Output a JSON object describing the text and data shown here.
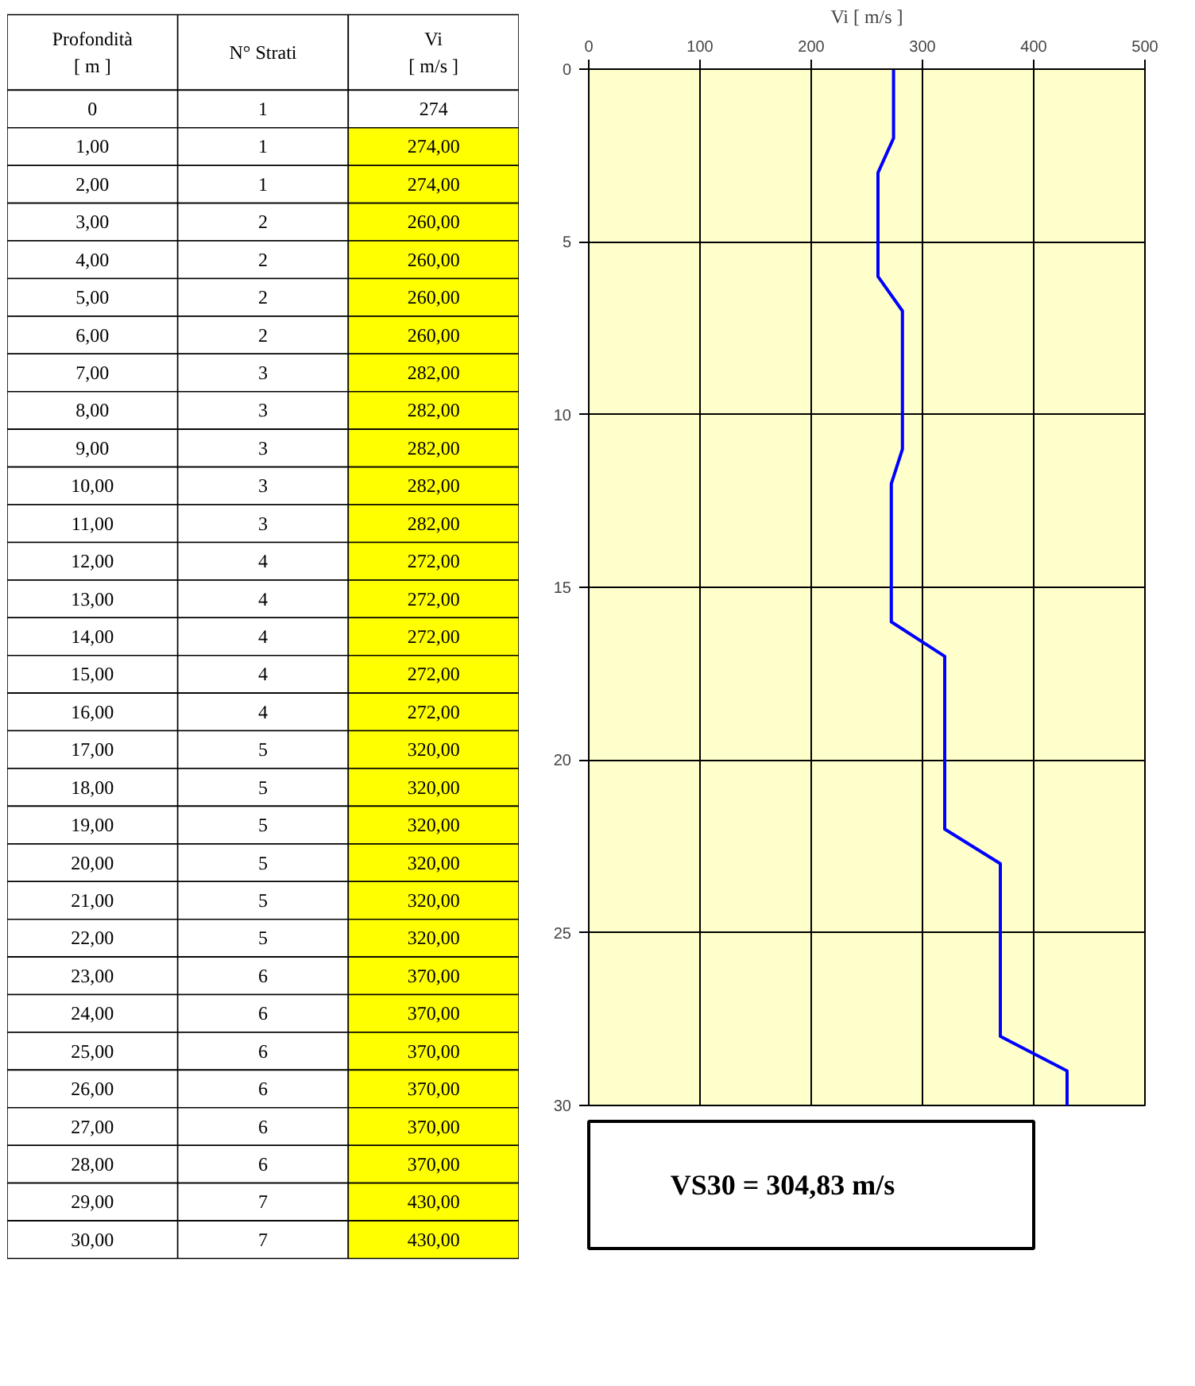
{
  "chart_data": {
    "type": "line",
    "xlabel": "Vi [ m/s ]",
    "xlim": [
      0,
      500
    ],
    "xticks": [
      0,
      100,
      200,
      300,
      400,
      500
    ],
    "ylim": [
      30,
      0
    ],
    "yticks": [
      0,
      5,
      10,
      15,
      20,
      25,
      30
    ],
    "grid": true,
    "series": [
      {
        "color": "#0000ff",
        "x": [
          274,
          274,
          274,
          260,
          260,
          260,
          260,
          282,
          282,
          282,
          282,
          282,
          272,
          272,
          272,
          272,
          272,
          320,
          320,
          320,
          320,
          320,
          320,
          370,
          370,
          370,
          370,
          370,
          370,
          430,
          430
        ],
        "values": [
          0,
          1,
          2,
          3,
          4,
          5,
          6,
          7,
          8,
          9,
          10,
          11,
          12,
          13,
          14,
          15,
          16,
          17,
          18,
          19,
          20,
          21,
          22,
          23,
          24,
          25,
          26,
          27,
          28,
          29,
          30
        ]
      }
    ],
    "annotations": [
      "Profondità\n[ m ]",
      "N° Strati",
      "Vi\n[ m/s ]",
      "0",
      "1",
      "274",
      "1,00",
      "1",
      "274,00",
      "2,00",
      "1",
      "274,00",
      "3,00",
      "2",
      "260,00",
      "4,00",
      "2",
      "260,00",
      "5,00",
      "2",
      "260,00",
      "6,00",
      "2",
      "260,00",
      "7,00",
      "3",
      "282,00",
      "8,00",
      "3",
      "282,00",
      "9,00",
      "3",
      "282,00",
      "10,00",
      "3",
      "282,00",
      "11,00",
      "3",
      "282,00",
      "12,00",
      "4",
      "272,00",
      "13,00",
      "4",
      "272,00",
      "14,00",
      "4",
      "272,00",
      "15,00",
      "4",
      "272,00",
      "16,00",
      "4",
      "272,00",
      "17,00",
      "5",
      "320,00",
      "18,00",
      "5",
      "320,00",
      "19,00",
      "5",
      "320,00",
      "20,00",
      "5",
      "320,00",
      "21,00",
      "5",
      "320,00",
      "22,00",
      "5",
      "320,00",
      "23,00",
      "6",
      "370,00",
      "24,00",
      "6",
      "370,00",
      "25,00",
      "6",
      "370,00",
      "26,00",
      "6",
      "370,00",
      "27,00",
      "6",
      "370,00",
      "28,00",
      "6",
      "370,00",
      "29,00",
      "7",
      "430,00",
      "30,00",
      "7",
      "430,00",
      "VS30 =    304,83      m/s"
    ]
  }
}
